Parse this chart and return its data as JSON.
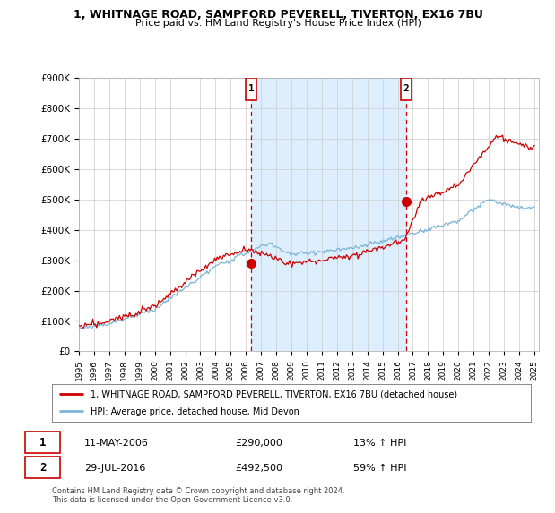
{
  "title_line1": "1, WHITNAGE ROAD, SAMPFORD PEVERELL, TIVERTON, EX16 7BU",
  "title_line2": "Price paid vs. HM Land Registry's House Price Index (HPI)",
  "ylim": [
    0,
    900000
  ],
  "yticks": [
    0,
    100000,
    200000,
    300000,
    400000,
    500000,
    600000,
    700000,
    800000,
    900000
  ],
  "ytick_labels": [
    "£0",
    "£100K",
    "£200K",
    "£300K",
    "£400K",
    "£500K",
    "£600K",
    "£700K",
    "£800K",
    "£900K"
  ],
  "sale1_year": 2006.36,
  "sale1_price": 290000,
  "sale1_label": "1",
  "sale2_year": 2016.57,
  "sale2_price": 492500,
  "sale2_label": "2",
  "legend_line1": "1, WHITNAGE ROAD, SAMPFORD PEVERELL, TIVERTON, EX16 7BU (detached house)",
  "legend_line2": "HPI: Average price, detached house, Mid Devon",
  "ann1_date": "11-MAY-2006",
  "ann1_price": "£290,000",
  "ann1_pct": "13% ↑ HPI",
  "ann2_date": "29-JUL-2016",
  "ann2_price": "£492,500",
  "ann2_pct": "59% ↑ HPI",
  "footer": "Contains HM Land Registry data © Crown copyright and database right 2024.\nThis data is licensed under the Open Government Licence v3.0.",
  "hpi_color": "#7ab4d8",
  "price_color": "#cc0000",
  "vline_color": "#cc0000",
  "shade_color": "#ddeeff",
  "background_color": "#ffffff",
  "grid_color": "#cccccc"
}
